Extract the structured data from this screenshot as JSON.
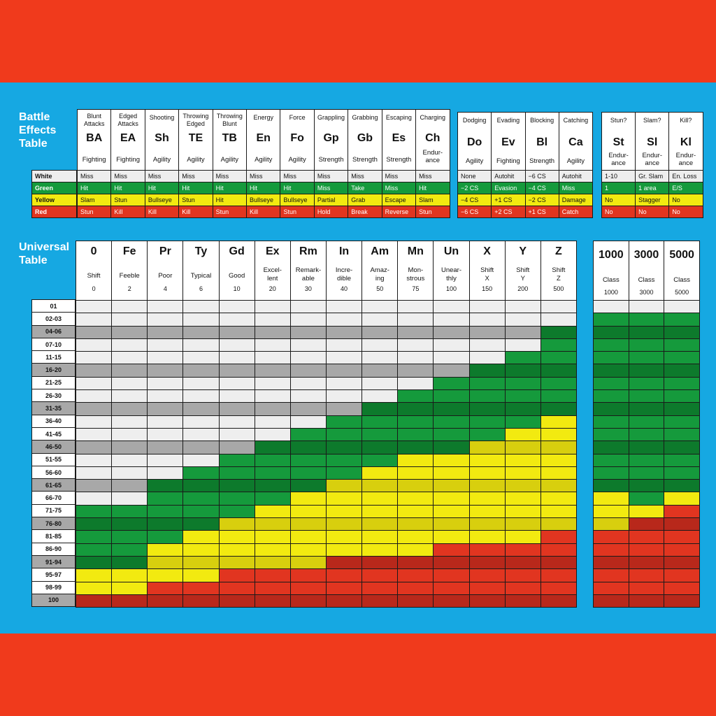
{
  "colors": {
    "panel": "#16a8e2",
    "band": "#f03a1c",
    "white": "#eeeeee",
    "gray": "#a8a8a8",
    "green": "#159a3c",
    "dgreen": "#0d7a2c",
    "yellow": "#f2ea10",
    "dyellow": "#d8cf0e",
    "red": "#e13520",
    "dred": "#b8281b"
  },
  "battle": {
    "title": [
      "Battle",
      "Effects",
      "Table"
    ],
    "color_labels": [
      "White",
      "Green",
      "Yellow",
      "Red"
    ],
    "groups": [
      {
        "columns": [
          {
            "title": [
              "Blunt",
              "Attacks"
            ],
            "code": "BA",
            "ability": [
              "Fighting"
            ],
            "results": [
              "Miss",
              "Hit",
              "Slam",
              "Stun"
            ]
          },
          {
            "title": [
              "Edged",
              "Attacks"
            ],
            "code": "EA",
            "ability": [
              "Fighting"
            ],
            "results": [
              "Miss",
              "Hit",
              "Stun",
              "Kill"
            ]
          },
          {
            "title": [
              "Shooting"
            ],
            "code": "Sh",
            "ability": [
              "Agility"
            ],
            "results": [
              "Miss",
              "Hit",
              "Bullseye",
              "Kill"
            ]
          },
          {
            "title": [
              "Throwing",
              "Edged"
            ],
            "code": "TE",
            "ability": [
              "Agility"
            ],
            "results": [
              "Miss",
              "Hit",
              "Stun",
              "Kill"
            ]
          },
          {
            "title": [
              "Throwing",
              "Blunt"
            ],
            "code": "TB",
            "ability": [
              "Agility"
            ],
            "results": [
              "Miss",
              "Hit",
              "Hit",
              "Stun"
            ]
          },
          {
            "title": [
              "Energy"
            ],
            "code": "En",
            "ability": [
              "Agility"
            ],
            "results": [
              "Miss",
              "Hit",
              "Bullseye",
              "Kill"
            ]
          },
          {
            "title": [
              "Force"
            ],
            "code": "Fo",
            "ability": [
              "Agility"
            ],
            "results": [
              "Miss",
              "Hit",
              "Bullseye",
              "Stun"
            ]
          },
          {
            "title": [
              "Grappling"
            ],
            "code": "Gp",
            "ability": [
              "Strength"
            ],
            "results": [
              "Miss",
              "Miss",
              "Partial",
              "Hold"
            ]
          },
          {
            "title": [
              "Grabbing"
            ],
            "code": "Gb",
            "ability": [
              "Strength"
            ],
            "results": [
              "Miss",
              "Take",
              "Grab",
              "Break"
            ]
          },
          {
            "title": [
              "Escaping"
            ],
            "code": "Es",
            "ability": [
              "Strength"
            ],
            "results": [
              "Miss",
              "Miss",
              "Escape",
              "Reverse"
            ]
          },
          {
            "title": [
              "Charging"
            ],
            "code": "Ch",
            "ability": [
              "Endur-",
              "ance"
            ],
            "results": [
              "Miss",
              "Hit",
              "Slam",
              "Stun"
            ]
          }
        ]
      },
      {
        "columns": [
          {
            "title": [
              "Dodging"
            ],
            "code": "Do",
            "ability": [
              "Agility"
            ],
            "results": [
              "None",
              "−2 CS",
              "−4 CS",
              "−6 CS"
            ]
          },
          {
            "title": [
              "Evading"
            ],
            "code": "Ev",
            "ability": [
              "Fighting"
            ],
            "results": [
              "Autohit",
              "Evasion",
              "+1 CS",
              "+2 CS"
            ]
          },
          {
            "title": [
              "Blocking"
            ],
            "code": "Bl",
            "ability": [
              "Strength"
            ],
            "results": [
              "−6 CS",
              "−4 CS",
              "−2 CS",
              "+1 CS"
            ]
          },
          {
            "title": [
              "Catching"
            ],
            "code": "Ca",
            "ability": [
              "Agility"
            ],
            "results": [
              "Autohit",
              "Miss",
              "Damage",
              "Catch"
            ]
          }
        ]
      },
      {
        "columns": [
          {
            "title": [
              "Stun?"
            ],
            "code": "St",
            "ability": [
              "Endur-",
              "ance"
            ],
            "results": [
              "1-10",
              "1",
              "No",
              "No"
            ]
          },
          {
            "title": [
              "Slam?"
            ],
            "code": "Sl",
            "ability": [
              "Endur-",
              "ance"
            ],
            "results": [
              "Gr. Slam",
              "1 area",
              "Stagger",
              "No"
            ]
          },
          {
            "title": [
              "Kill?"
            ],
            "code": "Kl",
            "ability": [
              "Endur-",
              "ance"
            ],
            "results": [
              "En. Loss",
              "E/S",
              "No",
              "No"
            ]
          }
        ]
      }
    ]
  },
  "universal": {
    "title": [
      "Universal",
      "Table"
    ],
    "rows": [
      "01",
      "02-03",
      "04-06",
      "07-10",
      "11-15",
      "16-20",
      "21-25",
      "26-30",
      "31-35",
      "36-40",
      "41-45",
      "46-50",
      "51-55",
      "56-60",
      "61-65",
      "66-70",
      "71-75",
      "76-80",
      "81-85",
      "86-90",
      "91-94",
      "95-97",
      "98-99",
      "100"
    ],
    "ranks": [
      {
        "code": "0",
        "name": [
          "Shift"
        ],
        "value": "0",
        "w": 1,
        "g": 16,
        "y": 21
      },
      {
        "code": "Fe",
        "name": [
          "Feeble"
        ],
        "value": "2",
        "w": 1,
        "g": 16,
        "y": 21
      },
      {
        "code": "Pr",
        "name": [
          "Poor"
        ],
        "value": "4",
        "w": 1,
        "g": 14,
        "y": 19
      },
      {
        "code": "Ty",
        "name": [
          "Typical"
        ],
        "value": "6",
        "w": 1,
        "g": 13,
        "y": 18
      },
      {
        "code": "Gd",
        "name": [
          "Good"
        ],
        "value": "10",
        "w": 1,
        "g": 12,
        "y": 17
      },
      {
        "code": "Ex",
        "name": [
          "Excel-",
          "lent"
        ],
        "value": "20",
        "w": 1,
        "g": 11,
        "y": 16
      },
      {
        "code": "Rm",
        "name": [
          "Remark-",
          "able"
        ],
        "value": "30",
        "w": 1,
        "g": 10,
        "y": 15
      },
      {
        "code": "In",
        "name": [
          "Incre-",
          "dible"
        ],
        "value": "40",
        "w": 1,
        "g": 9,
        "y": 14
      },
      {
        "code": "Am",
        "name": [
          "Amaz-",
          "ing"
        ],
        "value": "50",
        "w": 1,
        "g": 8,
        "y": 13
      },
      {
        "code": "Mn",
        "name": [
          "Mon-",
          "strous"
        ],
        "value": "75",
        "w": 1,
        "g": 7,
        "y": 12
      },
      {
        "code": "Un",
        "name": [
          "Unear-",
          "thly"
        ],
        "value": "100",
        "w": 1,
        "g": 6,
        "y": 12
      },
      {
        "code": "X",
        "name": [
          "Shift",
          "X"
        ],
        "value": "150",
        "w": 1,
        "g": 5,
        "y": 11
      },
      {
        "code": "Y",
        "name": [
          "Shift",
          "Y"
        ],
        "value": "200",
        "w": 1,
        "g": 4,
        "y": 10
      },
      {
        "code": "Z",
        "name": [
          "Shift",
          "Z"
        ],
        "value": "500",
        "w": 1,
        "g": 2,
        "y": 9
      }
    ],
    "class_ranks": [
      {
        "code": "1000",
        "name": [
          "Class"
        ],
        "value": "1000",
        "w": 1,
        "g": 1,
        "y": 15
      },
      {
        "code": "3000",
        "name": [
          "Class"
        ],
        "value": "3000",
        "w": 1,
        "g": 1,
        "y": 16
      },
      {
        "code": "5000",
        "name": [
          "Class"
        ],
        "value": "5000",
        "w": 1,
        "g": 1,
        "y": 15
      }
    ]
  }
}
